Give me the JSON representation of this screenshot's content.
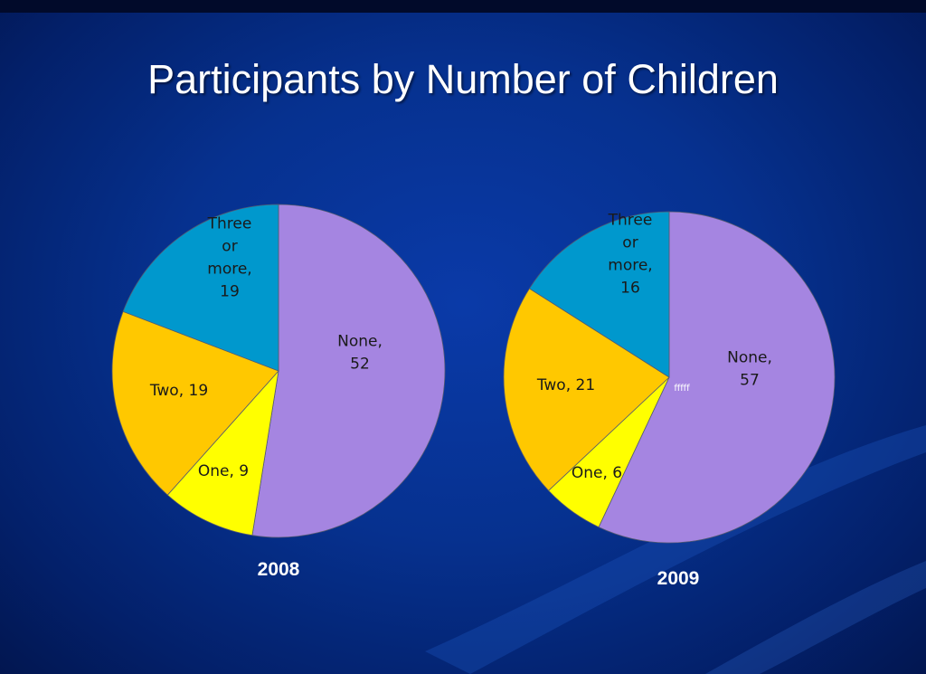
{
  "slide": {
    "title": "Participants by Number of Children"
  },
  "colors": {
    "none": "#a585e1",
    "one": "#ffff00",
    "two": "#ffc800",
    "three": "#0098cd"
  },
  "chart_data": [
    {
      "type": "pie",
      "title": "2008",
      "categories": [
        "None",
        "One",
        "Two",
        "Three or more"
      ],
      "values": [
        52,
        9,
        19,
        19
      ],
      "labels": [
        "None,|52",
        "One, 9",
        "Two, 19",
        "Three|or|more,|19"
      ]
    },
    {
      "type": "pie",
      "title": "2009",
      "categories": [
        "None",
        "One",
        "Two",
        "Three or more"
      ],
      "values": [
        57,
        6,
        21,
        16
      ],
      "labels": [
        "None,|57",
        "One, 6",
        "Two, 21",
        "Three|or|more,|16"
      ],
      "annotation": "fffff"
    }
  ]
}
